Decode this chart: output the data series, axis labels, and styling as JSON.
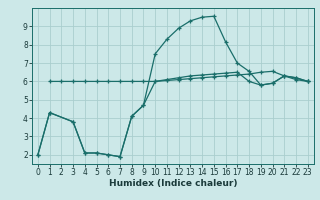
{
  "xlabel": "Humidex (Indice chaleur)",
  "xlim": [
    -0.5,
    23.5
  ],
  "ylim": [
    1.5,
    10.0
  ],
  "yticks": [
    2,
    3,
    4,
    5,
    6,
    7,
    8,
    9
  ],
  "xticks": [
    0,
    1,
    2,
    3,
    4,
    5,
    6,
    7,
    8,
    9,
    10,
    11,
    12,
    13,
    14,
    15,
    16,
    17,
    18,
    19,
    20,
    21,
    22,
    23
  ],
  "bg_color": "#cce8e8",
  "line_color": "#1a6e6a",
  "grid_color": "#aacece",
  "line1_x": [
    0,
    1,
    3,
    4,
    5,
    6,
    7,
    8,
    9,
    10,
    11,
    12,
    13,
    14,
    15,
    16,
    17,
    18,
    19,
    20,
    21,
    22,
    23
  ],
  "line1_y": [
    2.0,
    4.3,
    3.8,
    2.1,
    2.1,
    2.0,
    1.9,
    4.1,
    4.7,
    6.0,
    6.1,
    6.2,
    6.3,
    6.35,
    6.4,
    6.45,
    6.5,
    6.0,
    5.8,
    5.9,
    6.3,
    6.2,
    6.0
  ],
  "line2_x": [
    1,
    2,
    3,
    4,
    5,
    6,
    7,
    8,
    9,
    10,
    11,
    12,
    13,
    14,
    15,
    16,
    17,
    18,
    19,
    20,
    21,
    22,
    23
  ],
  "line2_y": [
    6.0,
    6.0,
    6.0,
    6.0,
    6.0,
    6.0,
    6.0,
    6.0,
    6.0,
    6.0,
    6.05,
    6.1,
    6.15,
    6.2,
    6.25,
    6.3,
    6.35,
    6.4,
    6.5,
    6.55,
    6.3,
    6.1,
    6.0
  ],
  "line3_x": [
    0,
    1,
    3,
    4,
    5,
    6,
    7,
    8,
    9,
    10,
    11,
    12,
    13,
    14,
    15,
    16,
    17,
    18,
    19,
    20,
    21,
    22,
    23
  ],
  "line3_y": [
    2.0,
    4.3,
    3.8,
    2.1,
    2.1,
    2.0,
    1.9,
    4.1,
    4.7,
    7.5,
    8.3,
    8.9,
    9.3,
    9.5,
    9.55,
    8.15,
    7.0,
    6.55,
    5.8,
    5.9,
    6.3,
    6.2,
    6.0
  ],
  "tick_fontsize": 5.5,
  "xlabel_fontsize": 6.5,
  "tick_color": "#1a3a3a",
  "spine_color": "#1a6e6a"
}
